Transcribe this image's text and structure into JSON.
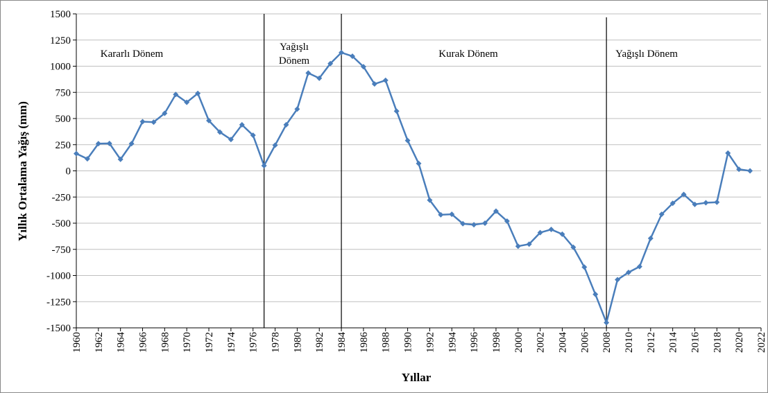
{
  "chart_data": {
    "type": "line",
    "y_label": "Yıllık Ortalama Yağış (mm)",
    "x_label": "Yıllar",
    "annotations": [
      [
        "Kararlı Dönem"
      ],
      [
        "Yağışlı",
        "Dönem"
      ],
      [
        "Kurak Dönem"
      ],
      [
        "Yağışlı Dönem"
      ]
    ],
    "period_lines": [
      1977,
      1984,
      2008
    ],
    "x": [
      1960,
      1961,
      1962,
      1963,
      1964,
      1965,
      1966,
      1967,
      1968,
      1969,
      1970,
      1971,
      1972,
      1973,
      1974,
      1975,
      1976,
      1977,
      1978,
      1979,
      1980,
      1981,
      1982,
      1983,
      1984,
      1985,
      1986,
      1987,
      1988,
      1989,
      1990,
      1991,
      1992,
      1993,
      1994,
      1995,
      1996,
      1997,
      1998,
      1999,
      2000,
      2001,
      2002,
      2003,
      2004,
      2005,
      2006,
      2007,
      2008,
      2009,
      2010,
      2011,
      2012,
      2013,
      2014,
      2015,
      2016,
      2017,
      2018,
      2019,
      2020,
      2021
    ],
    "series": [
      {
        "color": "#4a7ebb",
        "values": [
          165,
          115,
          260,
          262,
          110,
          260,
          470,
          465,
          550,
          730,
          655,
          740,
          480,
          370,
          300,
          440,
          340,
          50,
          245,
          440,
          590,
          935,
          885,
          1025,
          1130,
          1095,
          995,
          830,
          865,
          570,
          290,
          70,
          -280,
          -420,
          -415,
          -505,
          -515,
          -500,
          -385,
          -480,
          -720,
          -700,
          -590,
          -560,
          -605,
          -730,
          -920,
          -1180,
          -1450,
          -1040,
          -970,
          -915,
          -645,
          -415,
          -310,
          -225,
          -320,
          -305,
          -300,
          170,
          15,
          0
        ]
      }
    ],
    "xlim": [
      1960,
      2022
    ],
    "xticks": [
      1960,
      1962,
      1964,
      1966,
      1968,
      1970,
      1972,
      1974,
      1976,
      1978,
      1980,
      1982,
      1984,
      1986,
      1988,
      1990,
      1992,
      1994,
      1996,
      1998,
      2000,
      2002,
      2004,
      2006,
      2008,
      2010,
      2012,
      2014,
      2016,
      2018,
      2020,
      2022
    ],
    "ylim": [
      -1500,
      1500
    ],
    "yticks": [
      -1500,
      -1250,
      -1000,
      -750,
      -500,
      -250,
      0,
      250,
      500,
      750,
      1000,
      1250,
      1500
    ],
    "grid": true
  }
}
